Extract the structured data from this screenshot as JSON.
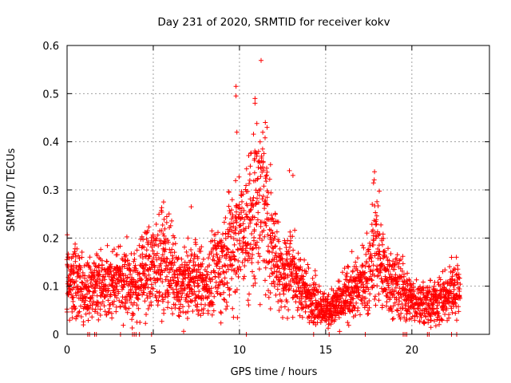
{
  "chart_data": {
    "type": "scatter",
    "title": "Day 231 of 2020, SRMTID for receiver kokv",
    "xlabel": "GPS time / hours",
    "ylabel": "SRMTID / TECUs",
    "xlim": [
      0,
      24.5
    ],
    "ylim": [
      0,
      0.6
    ],
    "x_ticks": [
      0,
      5,
      10,
      15,
      20
    ],
    "x_tick_labels": [
      "0",
      "5",
      "10",
      "15",
      "20"
    ],
    "y_ticks": [
      0,
      0.1,
      0.2,
      0.3,
      0.4,
      0.5,
      0.6
    ],
    "y_tick_labels": [
      "0",
      "0.1",
      "0.2",
      "0.3",
      "0.4",
      "0.5",
      "0.6"
    ],
    "grid": true,
    "marker": "+",
    "color": "#ff0000",
    "series": [
      {
        "name": "SRMTID",
        "x_range": [
          0,
          22.8
        ],
        "sample_interval_hours": 0.02,
        "envelope": [
          {
            "x": 0.0,
            "y": 0.12
          },
          {
            "x": 0.5,
            "y": 0.11
          },
          {
            "x": 1.0,
            "y": 0.09
          },
          {
            "x": 1.5,
            "y": 0.11
          },
          {
            "x": 2.0,
            "y": 0.1
          },
          {
            "x": 2.5,
            "y": 0.1
          },
          {
            "x": 3.0,
            "y": 0.11
          },
          {
            "x": 3.5,
            "y": 0.11
          },
          {
            "x": 4.0,
            "y": 0.1
          },
          {
            "x": 4.5,
            "y": 0.13
          },
          {
            "x": 5.0,
            "y": 0.14
          },
          {
            "x": 5.5,
            "y": 0.16
          },
          {
            "x": 6.0,
            "y": 0.14
          },
          {
            "x": 6.5,
            "y": 0.1
          },
          {
            "x": 7.0,
            "y": 0.11
          },
          {
            "x": 7.5,
            "y": 0.12
          },
          {
            "x": 8.0,
            "y": 0.1
          },
          {
            "x": 8.5,
            "y": 0.12
          },
          {
            "x": 9.0,
            "y": 0.15
          },
          {
            "x": 9.5,
            "y": 0.18
          },
          {
            "x": 9.9,
            "y": 0.22
          },
          {
            "x": 10.3,
            "y": 0.2
          },
          {
            "x": 10.8,
            "y": 0.25
          },
          {
            "x": 11.2,
            "y": 0.3
          },
          {
            "x": 11.6,
            "y": 0.24
          },
          {
            "x": 12.0,
            "y": 0.17
          },
          {
            "x": 12.5,
            "y": 0.13
          },
          {
            "x": 13.0,
            "y": 0.14
          },
          {
            "x": 13.5,
            "y": 0.1
          },
          {
            "x": 14.0,
            "y": 0.08
          },
          {
            "x": 14.5,
            "y": 0.07
          },
          {
            "x": 15.0,
            "y": 0.05
          },
          {
            "x": 15.5,
            "y": 0.06
          },
          {
            "x": 16.0,
            "y": 0.07
          },
          {
            "x": 16.5,
            "y": 0.09
          },
          {
            "x": 17.0,
            "y": 0.1
          },
          {
            "x": 17.5,
            "y": 0.12
          },
          {
            "x": 17.8,
            "y": 0.19
          },
          {
            "x": 18.2,
            "y": 0.15
          },
          {
            "x": 18.6,
            "y": 0.11
          },
          {
            "x": 19.0,
            "y": 0.11
          },
          {
            "x": 19.5,
            "y": 0.09
          },
          {
            "x": 20.0,
            "y": 0.07
          },
          {
            "x": 20.5,
            "y": 0.07
          },
          {
            "x": 21.0,
            "y": 0.06
          },
          {
            "x": 21.5,
            "y": 0.07
          },
          {
            "x": 22.0,
            "y": 0.07
          },
          {
            "x": 22.4,
            "y": 0.1
          },
          {
            "x": 22.8,
            "y": 0.09
          }
        ],
        "peaks": [
          {
            "x": 9.8,
            "y": 0.515
          },
          {
            "x": 9.8,
            "y": 0.495
          },
          {
            "x": 9.85,
            "y": 0.42
          },
          {
            "x": 10.9,
            "y": 0.49
          },
          {
            "x": 10.9,
            "y": 0.48
          },
          {
            "x": 11.5,
            "y": 0.44
          },
          {
            "x": 11.6,
            "y": 0.43
          },
          {
            "x": 11.2,
            "y": 0.4
          },
          {
            "x": 11.0,
            "y": 0.37
          },
          {
            "x": 12.9,
            "y": 0.34
          },
          {
            "x": 13.1,
            "y": 0.33
          },
          {
            "x": 17.7,
            "y": 0.27
          },
          {
            "x": 5.6,
            "y": 0.275
          },
          {
            "x": 7.2,
            "y": 0.265
          },
          {
            "x": 22.3,
            "y": 0.16
          }
        ],
        "zero_values_x": [
          1.2,
          1.3,
          1.6,
          1.7,
          3.1,
          3.8,
          3.9,
          4.0,
          4.2,
          4.9,
          10.4,
          14.3,
          15.2,
          17.3,
          19.5,
          19.6,
          19.7,
          20.9,
          21.0,
          22.3,
          22.6
        ]
      }
    ]
  }
}
